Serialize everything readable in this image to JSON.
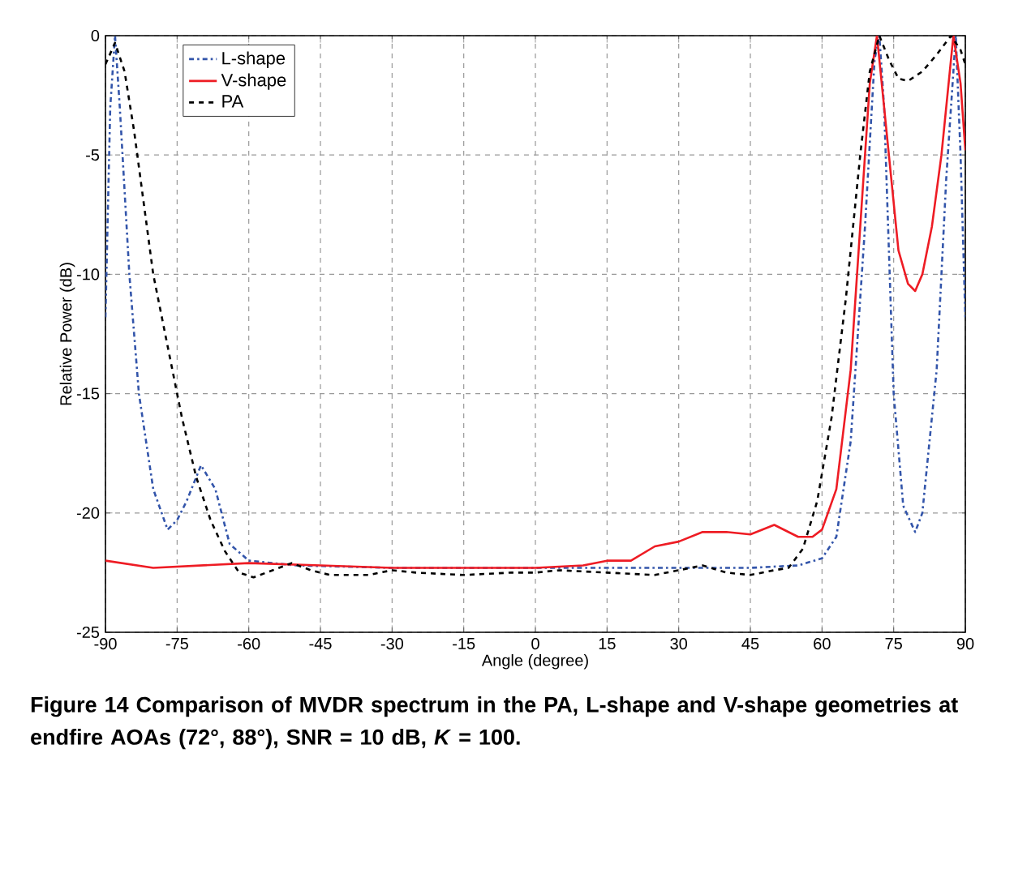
{
  "chart_data": {
    "type": "line",
    "xlabel": "Angle (degree)",
    "ylabel": "Relative Power (dB)",
    "xlim": [
      -90,
      90
    ],
    "xticks": [
      -90,
      -75,
      -60,
      -45,
      -30,
      -15,
      0,
      15,
      30,
      45,
      60,
      75,
      90
    ],
    "ylim": [
      -25,
      0
    ],
    "yticks": [
      -25,
      -20,
      -15,
      -10,
      -5,
      0
    ],
    "grid": true,
    "legend": "top left",
    "series": [
      {
        "name": "L-shape",
        "color": "#3355aa",
        "line_style": "dashdotted",
        "x": [
          -90,
          -89,
          -88,
          -87,
          -85,
          -83,
          -80,
          -77,
          -75,
          -73,
          -70,
          -67,
          -64,
          -60,
          -50,
          -30,
          0,
          30,
          45,
          55,
          60,
          63,
          66,
          69,
          71,
          72,
          73,
          75,
          77,
          79.5,
          81,
          84,
          86,
          88,
          89,
          90
        ],
        "values": [
          -11.8,
          -3,
          0,
          -3,
          -10,
          -15,
          -19,
          -20.7,
          -20.3,
          -19.5,
          -18,
          -19,
          -21.3,
          -22,
          -22.2,
          -22.3,
          -22.3,
          -22.3,
          -22.3,
          -22.2,
          -21.9,
          -21,
          -17,
          -8,
          -1,
          0,
          -3,
          -15,
          -19.7,
          -20.8,
          -20,
          -14,
          -6,
          0,
          -5,
          -11.8
        ]
      },
      {
        "name": "V-shape",
        "color": "#ee1c24",
        "line_style": "solid",
        "x": [
          -90,
          -80,
          -60,
          -45,
          -30,
          0,
          10,
          15,
          20,
          25,
          30,
          35,
          40,
          45,
          50,
          55,
          58,
          60,
          63,
          66,
          68,
          70,
          71.5,
          73,
          74.5,
          76,
          78,
          79.5,
          81,
          83,
          85,
          86.5,
          87.5,
          89,
          90
        ],
        "values": [
          -22,
          -22.3,
          -22.1,
          -22.2,
          -22.3,
          -22.3,
          -22.2,
          -22,
          -22,
          -21.4,
          -21.2,
          -20.8,
          -20.8,
          -20.9,
          -20.5,
          -21,
          -21,
          -20.7,
          -19,
          -14,
          -8,
          -2,
          0,
          -3,
          -6,
          -9,
          -10.4,
          -10.7,
          -10,
          -8,
          -5,
          -2,
          0,
          -2,
          -4.8
        ]
      },
      {
        "name": "PA",
        "color": "#000000",
        "line_style": "dashed",
        "x": [
          -90,
          -88,
          -86,
          -84,
          -82,
          -80,
          -77,
          -74,
          -71,
          -68,
          -65,
          -62,
          -59,
          -55,
          -51,
          -47,
          -43,
          -35,
          -30,
          -25,
          -15,
          -5,
          0,
          5,
          15,
          25,
          30,
          35,
          40,
          45,
          50,
          53,
          56,
          59,
          62,
          65,
          68,
          70,
          72,
          74,
          76,
          78,
          81,
          84,
          87,
          89,
          90
        ],
        "values": [
          -1.2,
          -0.3,
          -1.5,
          -4,
          -7,
          -10,
          -13,
          -16,
          -18.5,
          -20.3,
          -21.6,
          -22.5,
          -22.7,
          -22.4,
          -22.1,
          -22.4,
          -22.6,
          -22.6,
          -22.4,
          -22.5,
          -22.6,
          -22.5,
          -22.5,
          -22.4,
          -22.5,
          -22.6,
          -22.4,
          -22.2,
          -22.5,
          -22.6,
          -22.4,
          -22.3,
          -21.5,
          -19.5,
          -16,
          -11,
          -5,
          -1.5,
          0,
          -1,
          -1.8,
          -1.9,
          -1.5,
          -0.8,
          0,
          -0.6,
          -1.2
        ]
      }
    ],
    "annotations": [
      "Figure 14 Comparison of MVDR spectrum in the PA, L-shape and V-shape geometries at endfire AOAs (72°, 88°), SNR = 10 dB, *K* = 100."
    ]
  }
}
